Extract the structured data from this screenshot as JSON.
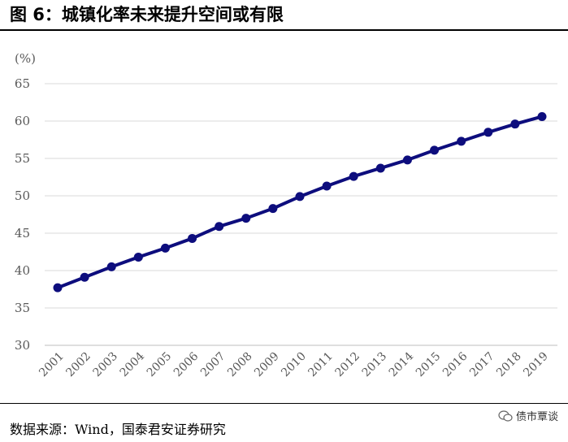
{
  "header": {
    "title": "图 6：城镇化率未来提升空间或有限"
  },
  "footer": {
    "source": "数据来源：Wind，国泰君安证券研究"
  },
  "watermark": {
    "text": "债市覃谈",
    "icon": "wechat-icon"
  },
  "colors": {
    "series": "#0d0d7d",
    "grid": "#d9d9d9",
    "axis_text": "#595959"
  },
  "chart_data": {
    "type": "line",
    "title": "城镇化率未来提升空间或有限",
    "unit_label": "(%)",
    "x": [
      "2001",
      "2002",
      "2003",
      "2004",
      "2005",
      "2006",
      "2007",
      "2008",
      "2009",
      "2010",
      "2011",
      "2012",
      "2013",
      "2014",
      "2015",
      "2016",
      "2017",
      "2018",
      "2019"
    ],
    "series": [
      {
        "values": [
          37.7,
          39.1,
          40.5,
          41.8,
          43.0,
          44.3,
          45.9,
          47.0,
          48.3,
          49.9,
          51.3,
          52.6,
          53.7,
          54.8,
          56.1,
          57.3,
          58.5,
          59.6,
          60.6
        ]
      }
    ],
    "y_ticks": [
      30,
      35,
      40,
      45,
      50,
      55,
      60,
      65
    ],
    "ylim": [
      30,
      65
    ],
    "grid": true,
    "legend": "none"
  }
}
